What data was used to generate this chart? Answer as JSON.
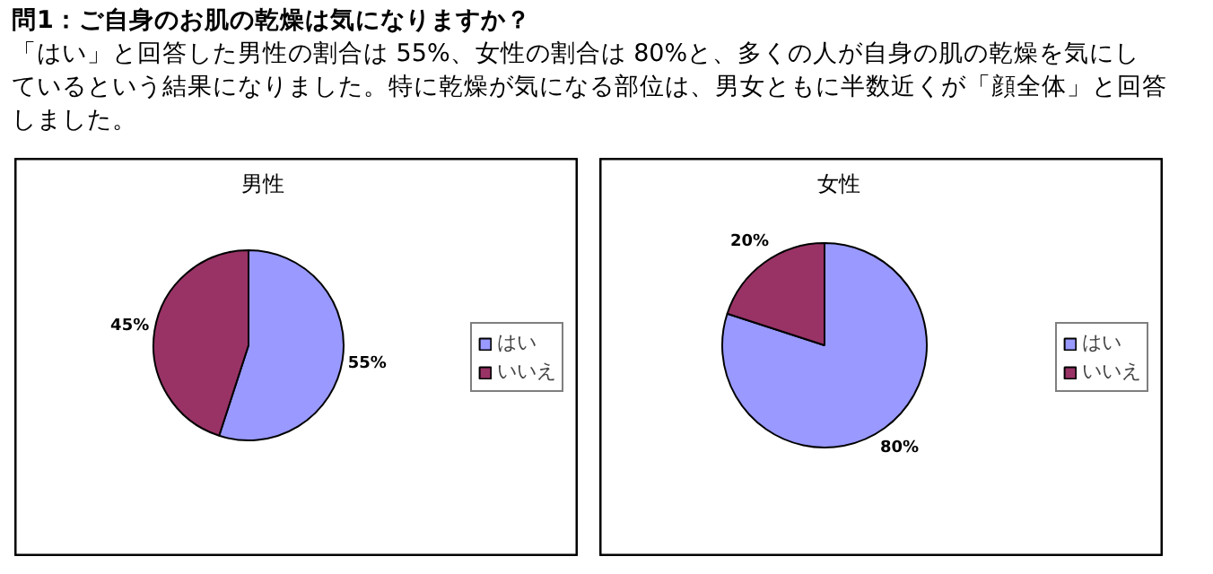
{
  "chart_data": [
    {
      "type": "other",
      "title": "問1：ご自身のお肌の乾燥は気になりますか？",
      "annotations": [
        "「はい」と回答した男性の割合は 55%、女性の割合は 80%と、多くの人が自身の肌の乾燥を気にし",
        "ているという結果になりました。特に乾燥が気になる部位は、男女ともに半数近くが「顔全体」と回答",
        "しました。"
      ]
    },
    {
      "type": "pie",
      "title": "男性",
      "categories": [
        "はい",
        "いいえ"
      ],
      "values": [
        55,
        45
      ],
      "colors": [
        "#9999ff",
        "#993366"
      ],
      "value_labels": [
        "55%",
        "45%"
      ],
      "legend": "right"
    },
    {
      "type": "pie",
      "title": "女性",
      "categories": [
        "はい",
        "いいえ"
      ],
      "values": [
        80,
        20
      ],
      "colors": [
        "#9999ff",
        "#993366"
      ],
      "value_labels": [
        "80%",
        "20%"
      ],
      "legend": "right"
    }
  ]
}
